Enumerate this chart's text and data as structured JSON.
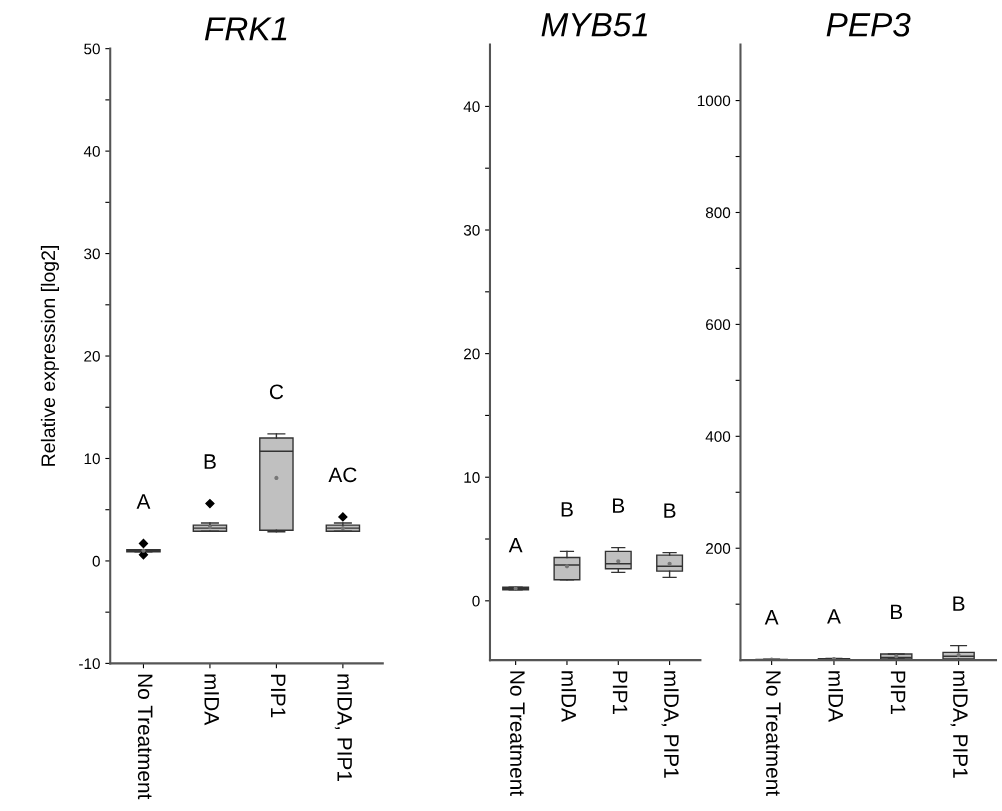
{
  "chart_data": [
    {
      "type": "box",
      "title": "FRK1",
      "ylabel": "Relative expression [log2]",
      "categories": [
        "No Treatment",
        "mIDA",
        "PIP1",
        "mIDA, PIP1"
      ],
      "color": "#c0c0c0",
      "ylim": [
        -10,
        50
      ],
      "yticks": [
        -10,
        {
          "value": -5,
          "label": null
        },
        0,
        {
          "value": 5,
          "label": null
        },
        10,
        {
          "value": 15,
          "label": null
        },
        20,
        {
          "value": 25,
          "label": null
        },
        30,
        {
          "value": 35,
          "label": null
        },
        40,
        {
          "value": 45,
          "label": null
        },
        50
      ],
      "boxes": [
        {
          "low": 0.9,
          "q1": 0.9,
          "median": 1.0,
          "q3": 1.1,
          "high": 1.1,
          "mean": 1.0,
          "outliers": [
            1.7,
            0.6
          ]
        },
        {
          "low": 2.9,
          "q1": 2.9,
          "median": 3.2,
          "q3": 3.5,
          "high": 3.7,
          "mean": 3.3,
          "outliers": [
            5.6
          ]
        },
        {
          "low": 2.85,
          "q1": 3.0,
          "median": 10.7,
          "q3": 12.0,
          "high": 12.4,
          "mean": 8.1
        },
        {
          "low": 2.9,
          "q1": 2.9,
          "median": 3.2,
          "q3": 3.5,
          "high": 3.7,
          "mean": 3.2,
          "outliers": [
            4.3
          ]
        }
      ],
      "annotations": [
        "A",
        "B",
        "C",
        "AC"
      ]
    },
    {
      "type": "box",
      "title": "MYB51",
      "categories": [
        "No Treatment",
        "mIDA",
        "PIP1",
        "mIDA, PIP1"
      ],
      "color": "#c0c0c0",
      "ylim": [
        -4.8,
        45
      ],
      "yticks": [
        0,
        {
          "value": 5,
          "label": null
        },
        10,
        {
          "value": 15,
          "label": null
        },
        20,
        {
          "value": 25,
          "label": null
        },
        30,
        {
          "value": 35,
          "label": null
        },
        40
      ],
      "boxes": [
        {
          "low": 0.9,
          "q1": 0.9,
          "median": 1.0,
          "q3": 1.1,
          "high": 1.1,
          "mean": 1.0
        },
        {
          "low": 1.7,
          "q1": 1.7,
          "median": 2.9,
          "q3": 3.5,
          "high": 4.0,
          "mean": 2.8
        },
        {
          "low": 2.3,
          "q1": 2.6,
          "median": 3.0,
          "q3": 4.0,
          "high": 4.3,
          "mean": 3.2
        },
        {
          "low": 1.9,
          "q1": 2.4,
          "median": 2.8,
          "q3": 3.7,
          "high": 3.9,
          "mean": 3.0
        }
      ],
      "annotations": [
        "A",
        "B",
        "B",
        "B"
      ]
    },
    {
      "type": "box",
      "title": "PEP3",
      "categories": [
        "No Treatment",
        "mIDA",
        "PIP1",
        "mIDA, PIP1"
      ],
      "color": "#c0c0c0",
      "ylim": [
        0,
        1100
      ],
      "yticks": [
        {
          "value": 100,
          "label": null
        },
        200,
        {
          "value": 300,
          "label": null
        },
        400,
        {
          "value": 500,
          "label": null
        },
        600,
        {
          "value": 700,
          "label": null
        },
        800,
        {
          "value": 900,
          "label": null
        },
        1000
      ],
      "boxes": [
        {
          "low": 0.5,
          "q1": 0.8,
          "median": 1,
          "q3": 1.2,
          "high": 1.5,
          "mean": 1
        },
        {
          "low": 1,
          "q1": 1.5,
          "median": 2,
          "q3": 2.5,
          "high": 3,
          "mean": 2
        },
        {
          "low": 2,
          "q1": 2,
          "median": 5,
          "q3": 11,
          "high": 11,
          "mean": 7
        },
        {
          "low": 1,
          "q1": 2,
          "median": 7,
          "q3": 14,
          "high": 26,
          "mean": 9
        }
      ],
      "annotations": [
        "A",
        "A",
        "B",
        "B"
      ]
    }
  ]
}
